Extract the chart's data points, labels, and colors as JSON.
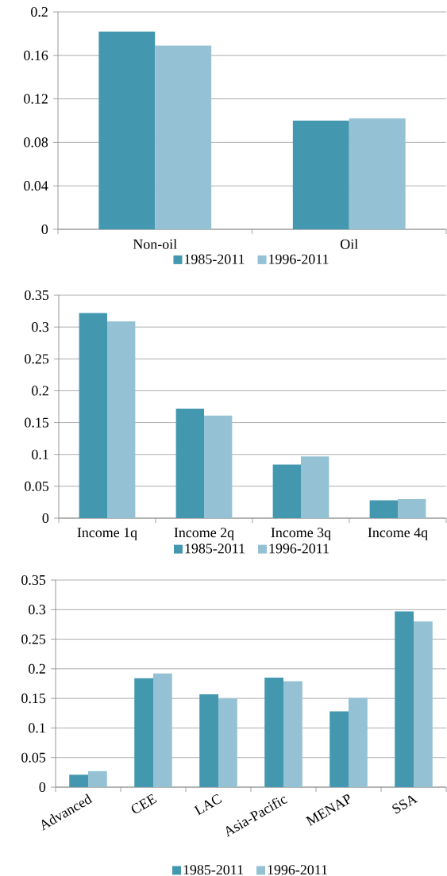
{
  "chart_data": [
    {
      "type": "bar",
      "categories": [
        "Non-oil",
        "Oil"
      ],
      "series": [
        {
          "name": "1985-2011",
          "color": "#4398b0",
          "values": [
            0.182,
            0.1
          ]
        },
        {
          "name": "1996-2011",
          "color": "#94c2d4",
          "values": [
            0.169,
            0.102
          ]
        }
      ],
      "ylim": [
        0,
        0.2
      ],
      "yticks": [
        0,
        0.04,
        0.08,
        0.12,
        0.16,
        0.2
      ],
      "grid": "y",
      "legend": "bottom"
    },
    {
      "type": "bar",
      "categories": [
        "Income 1q",
        "Income 2q",
        "Income 3q",
        "Income 4q"
      ],
      "series": [
        {
          "name": "1985-2011",
          "color": "#4398b0",
          "values": [
            0.322,
            0.172,
            0.084,
            0.028
          ]
        },
        {
          "name": "1996-2011",
          "color": "#94c2d4",
          "values": [
            0.309,
            0.161,
            0.097,
            0.03
          ]
        }
      ],
      "ylim": [
        0,
        0.35
      ],
      "yticks": [
        0,
        0.05,
        0.1,
        0.15,
        0.2,
        0.25,
        0.3,
        0.35
      ],
      "grid": "y",
      "legend": "bottom"
    },
    {
      "type": "bar",
      "categories": [
        "Advanced",
        "CEE",
        "LAC",
        "Asia-Pacific",
        "MENAP",
        "SSA"
      ],
      "series": [
        {
          "name": "1985-2011",
          "color": "#4398b0",
          "values": [
            0.021,
            0.184,
            0.157,
            0.185,
            0.128,
            0.297
          ]
        },
        {
          "name": "1996-2011",
          "color": "#94c2d4",
          "values": [
            0.027,
            0.192,
            0.15,
            0.179,
            0.151,
            0.28
          ]
        }
      ],
      "ylim": [
        0,
        0.35
      ],
      "yticks": [
        0,
        0.05,
        0.1,
        0.15,
        0.2,
        0.25,
        0.3,
        0.35
      ],
      "grid": "y",
      "legend": "bottom"
    }
  ]
}
